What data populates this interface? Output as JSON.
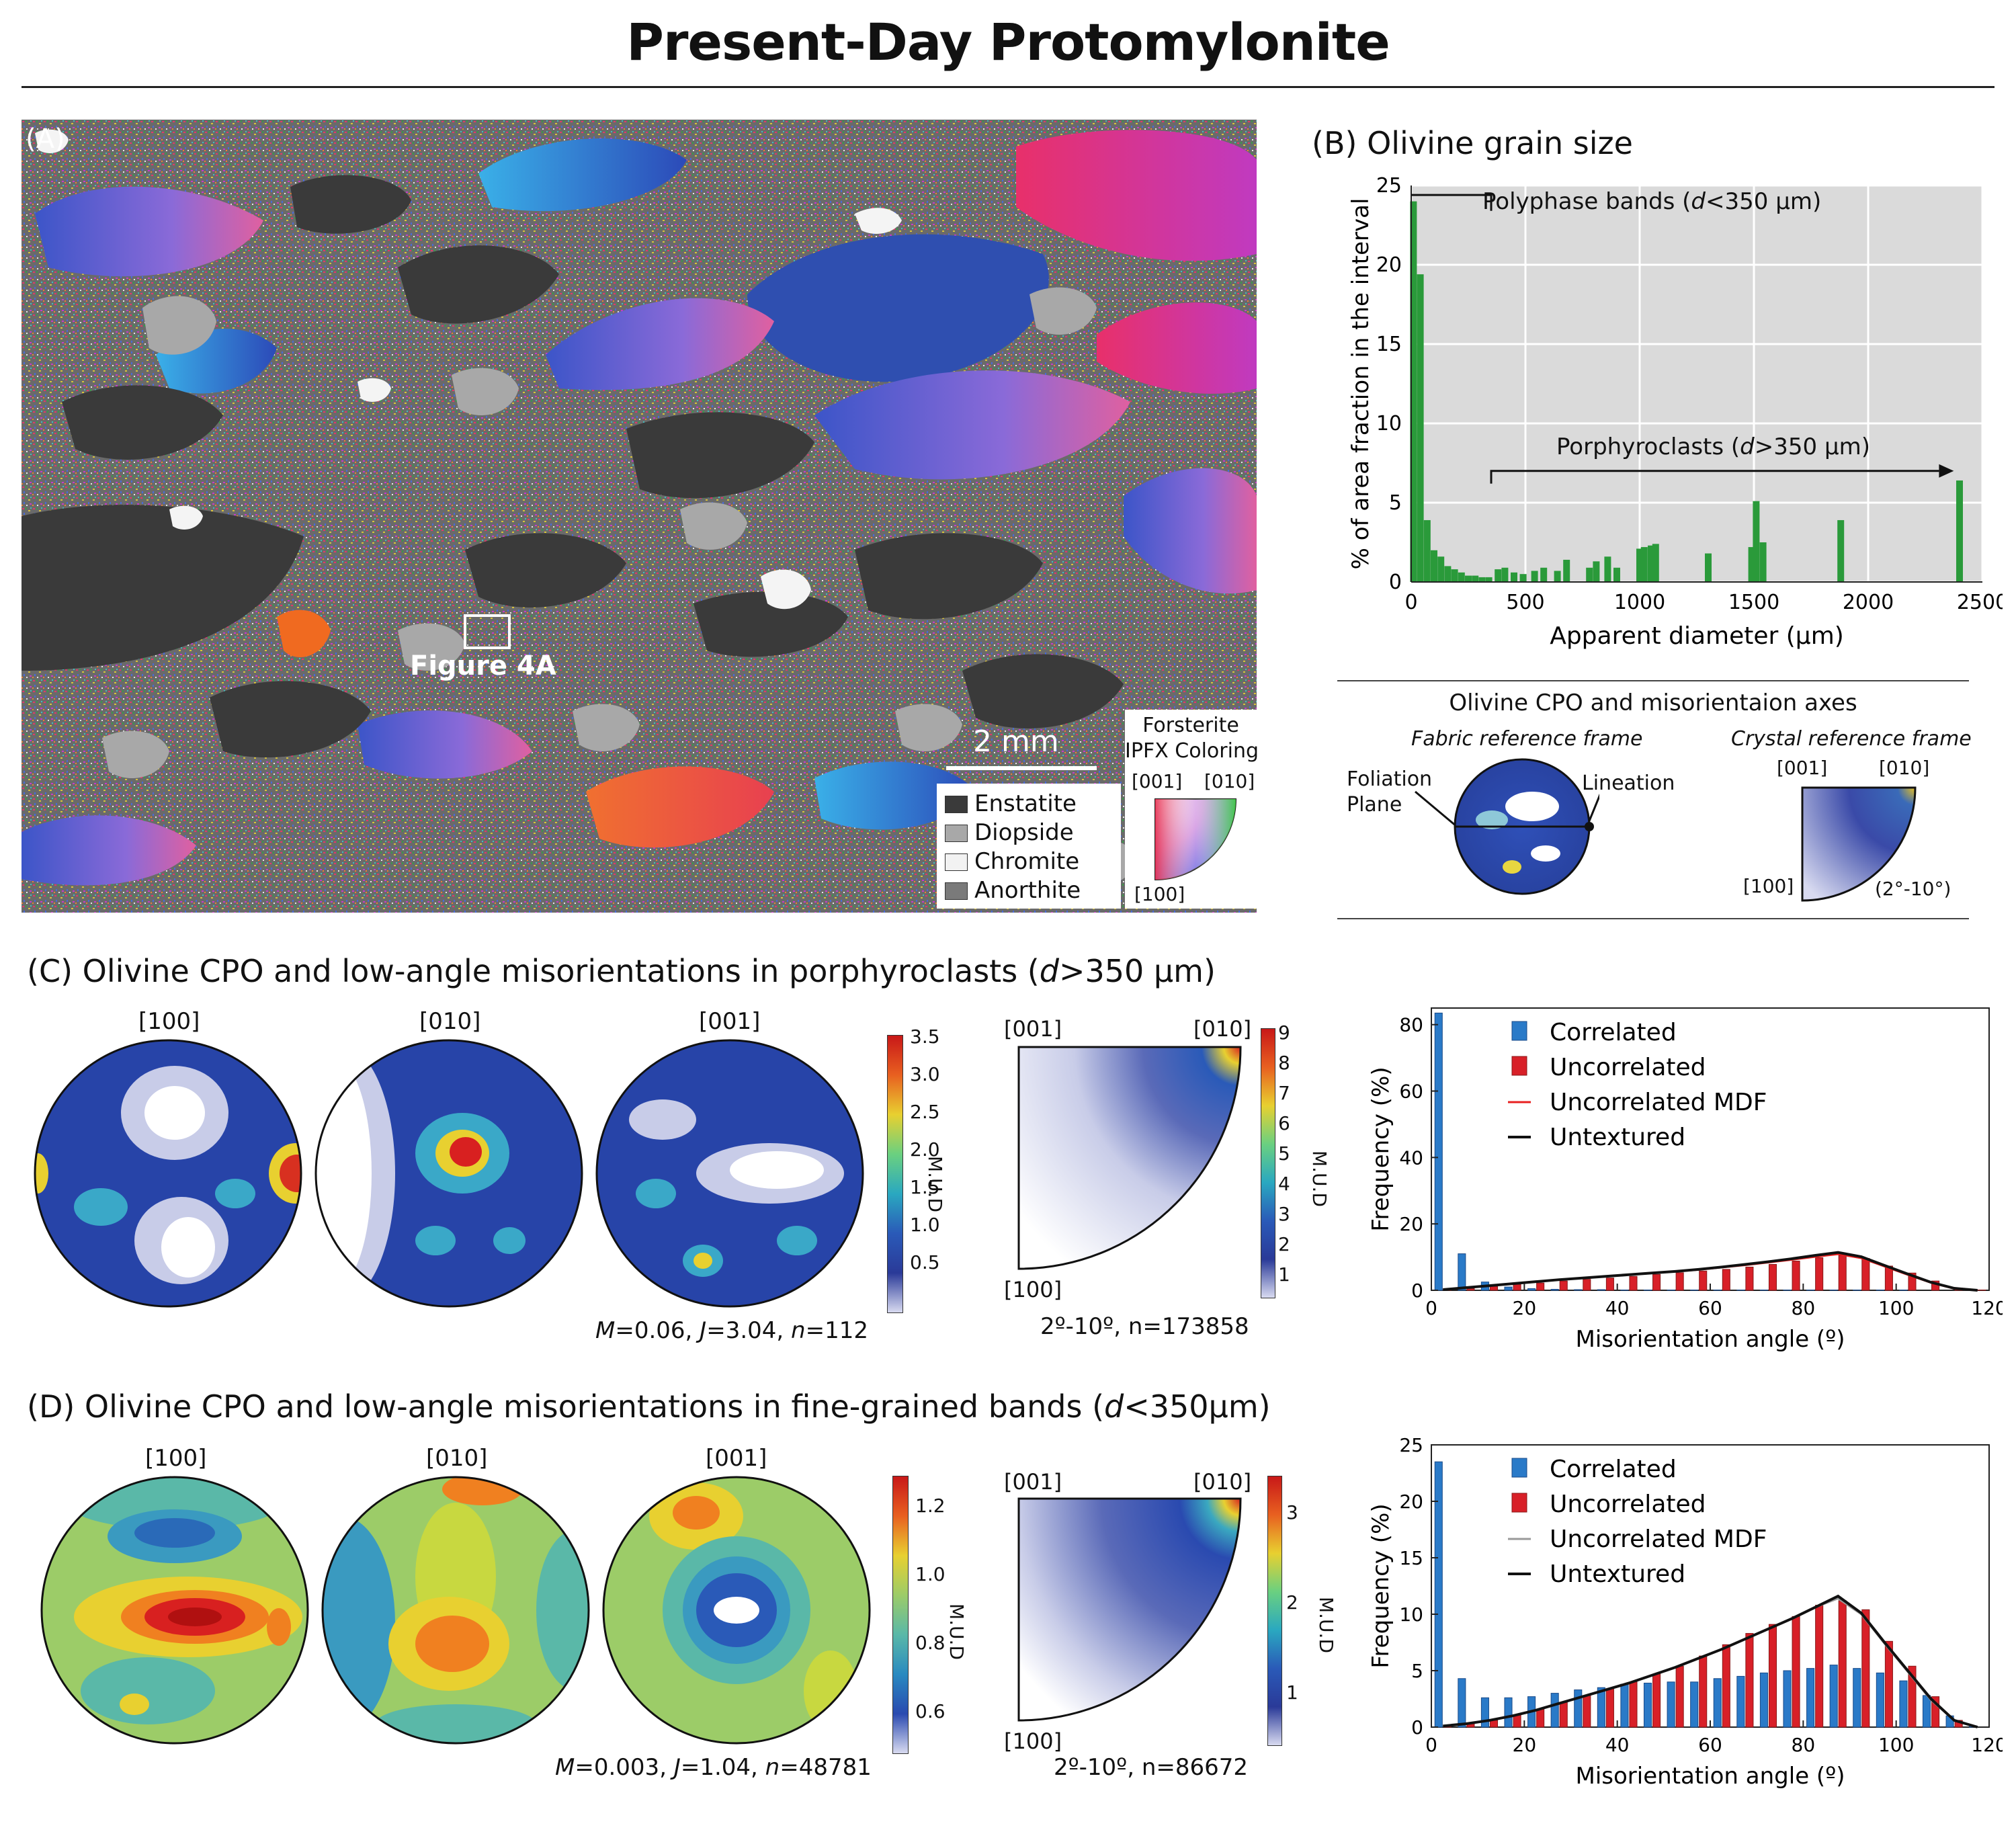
{
  "title": "Present-Day Protomylonite",
  "panel_a": {
    "label": "(A)",
    "callout": "Figure 4A",
    "scale_bar": "2 mm",
    "legend": [
      {
        "name": "Enstatite",
        "color": "#3a3a3a"
      },
      {
        "name": "Diopside",
        "color": "#a8a8a8"
      },
      {
        "name": "Chromite",
        "color": "#f2f2f2"
      },
      {
        "name": "Anorthite",
        "color": "#7a7a7a"
      }
    ],
    "ipf_key": {
      "title_line1": "Forsterite",
      "title_line2": "IPFX Coloring",
      "a": "[001]",
      "b": "[010]",
      "c": "[100]"
    }
  },
  "panel_b": {
    "title": "(B) Olivine grain size",
    "annotation_1": "Polyphase bands (",
    "annotation_1_var": "d",
    "annotation_1_tail": "<350 µm)",
    "annotation_2": "Porphyroclasts (",
    "annotation_2_var": "d",
    "annotation_2_tail": ">350 µm)",
    "inset_title": "Olivine CPO and misorientaion axes",
    "fabric_frame": "Fabric reference frame",
    "crystal_frame": "Crystal reference frame",
    "foliation": "Foliation",
    "plane": "Plane",
    "lineation": "Lineation",
    "crystal_a": "[001]",
    "crystal_b": "[010]",
    "crystal_c": "[100]",
    "crystal_range": "(2°-10°)"
  },
  "panel_c": {
    "title": "(C) Olivine CPO and low-angle misorientations in porphyroclasts (",
    "title_var": "d",
    "title_tail": ">350 µm)",
    "pole_labels": [
      "[100]",
      "[010]",
      "[001]"
    ],
    "stats": {
      "M": "0.06",
      "J": "3.04",
      "n": "112"
    },
    "cbar_ticks": [
      "3.5",
      "3.0",
      "2.5",
      "2.0",
      "1.5",
      "1.0",
      "0.5"
    ],
    "cbar_label": "M.U.D",
    "ipf_labels": [
      "[001]",
      "[010]",
      "[100]"
    ],
    "ipf_cbar_ticks": [
      "9",
      "8",
      "7",
      "6",
      "5",
      "4",
      "3",
      "2",
      "1"
    ],
    "ipf_caption": "2º-10º, n=173858"
  },
  "panel_d": {
    "title": "(D) Olivine CPO and low-angle misorientations in fine-grained bands (",
    "title_var": "d",
    "title_tail": "<350µm)",
    "pole_labels": [
      "[100]",
      "[010]",
      "[001]"
    ],
    "stats": {
      "M": "0.003",
      "J": "1.04",
      "n": "48781"
    },
    "cbar_ticks": [
      "1.2",
      "1.0",
      "0.8",
      "0.6"
    ],
    "cbar_label": "M.U.D",
    "ipf_labels": [
      "[001]",
      "[010]",
      "[100]"
    ],
    "ipf_cbar_ticks": [
      "3",
      "2",
      "1"
    ],
    "ipf_caption": "2º-10º, n=86672"
  },
  "chart_data": [
    {
      "id": "grain-size",
      "type": "bar",
      "title": "(B) Olivine grain size",
      "xlabel": "Apparent diameter (µm)",
      "ylabel": "% of area fraction in the interval",
      "xlim": [
        0,
        2500
      ],
      "ylim": [
        0,
        25
      ],
      "xticks": [
        "0",
        "500",
        "1000",
        "1500",
        "2000",
        "2500"
      ],
      "yticks": [
        "0",
        "5",
        "10",
        "15",
        "20",
        "25"
      ],
      "x": [
        10,
        40,
        70,
        100,
        130,
        160,
        190,
        220,
        250,
        280,
        310,
        340,
        380,
        410,
        450,
        490,
        540,
        580,
        640,
        680,
        780,
        810,
        860,
        900,
        1000,
        1020,
        1050,
        1070,
        1300,
        1490,
        1510,
        1540,
        1880,
        2400
      ],
      "values": [
        24,
        19.4,
        3.9,
        2.0,
        1.6,
        1.0,
        0.8,
        0.6,
        0.4,
        0.4,
        0.3,
        0.3,
        0.8,
        0.9,
        0.6,
        0.5,
        0.7,
        0.9,
        0.7,
        1.4,
        0.9,
        1.3,
        1.6,
        0.9,
        2.1,
        2.2,
        2.3,
        2.4,
        1.8,
        2.2,
        5.1,
        2.5,
        3.9,
        6.4
      ]
    },
    {
      "id": "misorientation-c",
      "type": "bar",
      "xlabel": "Misorientation angle (º)",
      "ylabel": "Frequency (%)",
      "xlim": [
        0,
        120
      ],
      "ylim": [
        0,
        85
      ],
      "xticks": [
        "0",
        "20",
        "40",
        "60",
        "80",
        "100",
        "120"
      ],
      "yticks": [
        "0",
        "20",
        "40",
        "60",
        "80"
      ],
      "legend": [
        "Correlated",
        "Uncorrelated",
        "Uncorrelated MDF",
        "Untextured"
      ],
      "categories": [
        2.5,
        7.5,
        12.5,
        17.5,
        22.5,
        27.5,
        32.5,
        37.5,
        42.5,
        47.5,
        52.5,
        57.5,
        62.5,
        67.5,
        72.5,
        77.5,
        82.5,
        87.5,
        92.5,
        97.5,
        102.5,
        107.5,
        112.5,
        117.5
      ],
      "series": [
        {
          "name": "Correlated",
          "values": [
            83.5,
            11,
            2.5,
            1.0,
            0.5,
            0.3,
            0.2,
            0.2,
            0.1,
            0.1,
            0.1,
            0.1,
            0.1,
            0.1,
            0.1,
            0.1,
            0.1,
            0.1,
            0.1,
            0.1,
            0.1,
            0,
            0,
            0
          ]
        },
        {
          "name": "Uncorrelated",
          "values": [
            0.3,
            0.5,
            1.2,
            1.8,
            2.2,
            2.8,
            3.3,
            3.7,
            4.2,
            4.8,
            5.3,
            5.8,
            6.3,
            7.0,
            7.8,
            8.8,
            9.8,
            10.5,
            9.6,
            7.3,
            5.2,
            2.8,
            0.7,
            0.1
          ]
        },
        {
          "name": "Uncorrelated MDF",
          "values": [
            0.2,
            0.8,
            1.4,
            2.0,
            2.6,
            3.2,
            3.7,
            4.2,
            4.7,
            5.2,
            5.7,
            6.2,
            6.9,
            7.6,
            8.4,
            9.2,
            10.1,
            10.9,
            9.7,
            7.2,
            4.7,
            2.3,
            0.5,
            0.0
          ]
        },
        {
          "name": "Untextured",
          "values": [
            0.2,
            0.8,
            1.4,
            2.0,
            2.6,
            3.2,
            3.7,
            4.2,
            4.7,
            5.2,
            5.7,
            6.3,
            7.0,
            7.8,
            8.6,
            9.5,
            10.5,
            11.4,
            10.1,
            7.5,
            4.9,
            2.4,
            0.6,
            0.0
          ]
        }
      ]
    },
    {
      "id": "misorientation-d",
      "type": "bar",
      "xlabel": "Misorientation angle (º)",
      "ylabel": "Frequency (%)",
      "xlim": [
        0,
        120
      ],
      "ylim": [
        0,
        25
      ],
      "xticks": [
        "0",
        "20",
        "40",
        "60",
        "80",
        "100",
        "120"
      ],
      "yticks": [
        "0",
        "5",
        "10",
        "15",
        "20",
        "25"
      ],
      "legend": [
        "Correlated",
        "Uncorrelated",
        "Uncorrelated MDF",
        "Untextured"
      ],
      "categories": [
        2.5,
        7.5,
        12.5,
        17.5,
        22.5,
        27.5,
        32.5,
        37.5,
        42.5,
        47.5,
        52.5,
        57.5,
        62.5,
        67.5,
        72.5,
        77.5,
        82.5,
        87.5,
        92.5,
        97.5,
        102.5,
        107.5,
        112.5,
        117.5
      ],
      "series": [
        {
          "name": "Correlated",
          "values": [
            23.5,
            4.3,
            2.6,
            2.6,
            2.7,
            3.0,
            3.3,
            3.5,
            3.8,
            3.9,
            4.0,
            4.0,
            4.3,
            4.5,
            4.8,
            5.0,
            5.2,
            5.5,
            5.2,
            4.8,
            4.1,
            2.8,
            1.0,
            0.1
          ]
        },
        {
          "name": "Uncorrelated",
          "values": [
            0.1,
            0.3,
            0.6,
            1.1,
            1.6,
            2.2,
            2.8,
            3.4,
            4.0,
            4.7,
            5.4,
            6.3,
            7.3,
            8.3,
            9.1,
            9.8,
            10.8,
            11.2,
            10.4,
            7.6,
            5.4,
            2.7,
            0.6,
            0.0
          ]
        },
        {
          "name": "Uncorrelated MDF",
          "values": [
            0.1,
            0.3,
            0.6,
            1.0,
            1.5,
            2.1,
            2.7,
            3.3,
            3.9,
            4.6,
            5.3,
            6.1,
            6.9,
            7.8,
            8.7,
            9.6,
            10.6,
            11.4,
            10.0,
            7.4,
            4.9,
            2.4,
            0.6,
            0.0
          ]
        },
        {
          "name": "Untextured",
          "values": [
            0.1,
            0.3,
            0.6,
            1.0,
            1.5,
            2.1,
            2.7,
            3.3,
            3.9,
            4.6,
            5.3,
            6.1,
            6.9,
            7.8,
            8.7,
            9.6,
            10.6,
            11.6,
            10.1,
            7.5,
            5.0,
            2.5,
            0.6,
            0.0
          ]
        }
      ]
    }
  ]
}
